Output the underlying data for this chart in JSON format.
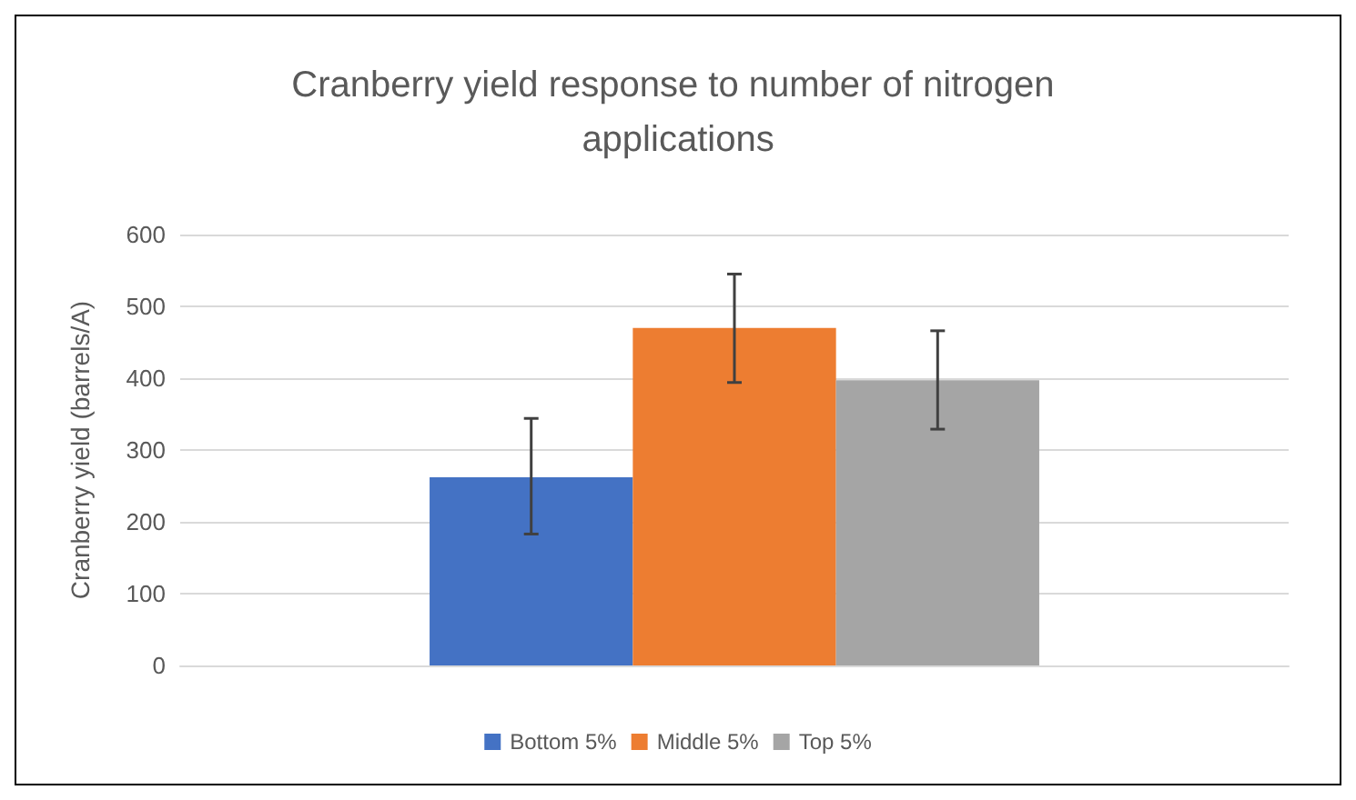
{
  "chart_data": {
    "type": "bar",
    "title": "Cranberry yield response to number of nitrogen applications",
    "ylabel": "Cranberry yield (barrels/A)",
    "categories": [
      null
    ],
    "series": [
      {
        "name": "Bottom 5%",
        "color": "#4472c4",
        "values": [
          262
        ],
        "errors": [
          [
            183,
            344
          ]
        ]
      },
      {
        "name": "Middle 5%",
        "color": "#ed7d31",
        "values": [
          470
        ],
        "errors": [
          [
            394,
            545
          ]
        ]
      },
      {
        "name": "Top 5%",
        "color": "#a5a5a5",
        "values": [
          397
        ],
        "errors": [
          [
            329,
            466
          ]
        ]
      }
    ],
    "ylim": [
      0,
      600
    ],
    "yticks": [
      0,
      100,
      200,
      300,
      400,
      500,
      600
    ],
    "grid": "y",
    "legend": "bottom"
  }
}
